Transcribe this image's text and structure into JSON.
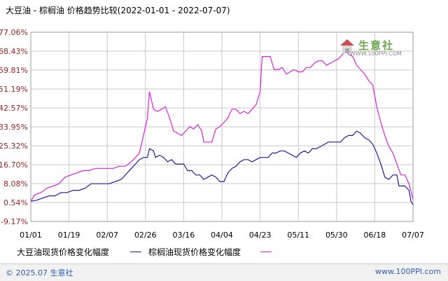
{
  "header": {
    "title": "大豆油 - 棕榈油 价格趋势比较(2022-01-01 - 2022-07-07)"
  },
  "logo": {
    "name": "生意社",
    "url": "WWW.100PPI.COM"
  },
  "footer": {
    "copyright": "© 2025.07 生意社",
    "site": "www.100PPI.com"
  },
  "colors": {
    "series_soy": "#1c1c9e",
    "series_palm": "#dd22dd",
    "grid": "#c9c9c9",
    "axis_text": "#000000"
  },
  "chart_data": {
    "type": "line",
    "title": "大豆油 - 棕榈油 价格趋势比较(2022-01-01 - 2022-07-07)",
    "xlabel": "",
    "ylabel": "",
    "x_tick_labels": [
      "01/01",
      "01/19",
      "02/07",
      "02/26",
      "03/16",
      "04/04",
      "04/23",
      "05/11",
      "05/30",
      "06/18",
      "07/07"
    ],
    "y_tick_labels": [
      "77.06%",
      "68.43%",
      "59.81%",
      "51.19%",
      "42.57%",
      "33.95%",
      "25.32%",
      "16.70%",
      "8.08%",
      "0.54%",
      "-9.17%"
    ],
    "ylim": [
      -9.17,
      77.06
    ],
    "grid": true,
    "legend_position": "bottom",
    "series": [
      {
        "name": "大豆油现货价格变化幅度",
        "points": [
          [
            0,
            0
          ],
          [
            3,
            0.5
          ],
          [
            6,
            1.5
          ],
          [
            9,
            2.5
          ],
          [
            12,
            2.5
          ],
          [
            15,
            4
          ],
          [
            18,
            4
          ],
          [
            21,
            5
          ],
          [
            24,
            5
          ],
          [
            27,
            6
          ],
          [
            30,
            8
          ],
          [
            33,
            8
          ],
          [
            36,
            8
          ],
          [
            39,
            8
          ],
          [
            42,
            9
          ],
          [
            45,
            10
          ],
          [
            48,
            13
          ],
          [
            50,
            15
          ],
          [
            52,
            17
          ],
          [
            54,
            19
          ],
          [
            56,
            20
          ],
          [
            58,
            20
          ],
          [
            59,
            24
          ],
          [
            61,
            23
          ],
          [
            62,
            20
          ],
          [
            64,
            21
          ],
          [
            66,
            20
          ],
          [
            68,
            18
          ],
          [
            70,
            19
          ],
          [
            72,
            17
          ],
          [
            74,
            17
          ],
          [
            76,
            17
          ],
          [
            78,
            14
          ],
          [
            80,
            14
          ],
          [
            82,
            12
          ],
          [
            84,
            12
          ],
          [
            86,
            10
          ],
          [
            88,
            11
          ],
          [
            90,
            12
          ],
          [
            92,
            11
          ],
          [
            94,
            9
          ],
          [
            96,
            9
          ],
          [
            98,
            13
          ],
          [
            100,
            15
          ],
          [
            102,
            16
          ],
          [
            104,
            18
          ],
          [
            106,
            19
          ],
          [
            108,
            19
          ],
          [
            110,
            18
          ],
          [
            112,
            19
          ],
          [
            114,
            20
          ],
          [
            116,
            20
          ],
          [
            118,
            20
          ],
          [
            120,
            22
          ],
          [
            122,
            22
          ],
          [
            124,
            23
          ],
          [
            126,
            23
          ],
          [
            128,
            22
          ],
          [
            130,
            21
          ],
          [
            132,
            20
          ],
          [
            134,
            22
          ],
          [
            136,
            23
          ],
          [
            138,
            22
          ],
          [
            140,
            24
          ],
          [
            142,
            24
          ],
          [
            144,
            25
          ],
          [
            146,
            26
          ],
          [
            148,
            27
          ],
          [
            150,
            27
          ],
          [
            152,
            27
          ],
          [
            154,
            27
          ],
          [
            156,
            29
          ],
          [
            158,
            30
          ],
          [
            160,
            30
          ],
          [
            162,
            32
          ],
          [
            164,
            31
          ],
          [
            166,
            29
          ],
          [
            168,
            28
          ],
          [
            170,
            26
          ],
          [
            172,
            22
          ],
          [
            174,
            17
          ],
          [
            176,
            11
          ],
          [
            178,
            10
          ],
          [
            180,
            12
          ],
          [
            182,
            12
          ],
          [
            183,
            7
          ],
          [
            186,
            7
          ],
          [
            188,
            5
          ],
          [
            189,
            0
          ],
          [
            190,
            -1.5
          ]
        ]
      },
      {
        "name": "棕榈油现货价格变化幅度",
        "points": [
          [
            0,
            0
          ],
          [
            2,
            3
          ],
          [
            5,
            4
          ],
          [
            8,
            6
          ],
          [
            11,
            7
          ],
          [
            14,
            8
          ],
          [
            17,
            11
          ],
          [
            20,
            12
          ],
          [
            23,
            13
          ],
          [
            26,
            14
          ],
          [
            29,
            14
          ],
          [
            32,
            15
          ],
          [
            35,
            15
          ],
          [
            38,
            15
          ],
          [
            41,
            15
          ],
          [
            44,
            16
          ],
          [
            47,
            16
          ],
          [
            50,
            18
          ],
          [
            52,
            20
          ],
          [
            54,
            22
          ],
          [
            56,
            30
          ],
          [
            58,
            38
          ],
          [
            59,
            50
          ],
          [
            61,
            42
          ],
          [
            63,
            41
          ],
          [
            65,
            42
          ],
          [
            67,
            43
          ],
          [
            69,
            38
          ],
          [
            71,
            32
          ],
          [
            73,
            31
          ],
          [
            75,
            30
          ],
          [
            77,
            32
          ],
          [
            79,
            34
          ],
          [
            81,
            33
          ],
          [
            83,
            35
          ],
          [
            85,
            32
          ],
          [
            86,
            27
          ],
          [
            88,
            27
          ],
          [
            90,
            27
          ],
          [
            92,
            33
          ],
          [
            94,
            34
          ],
          [
            96,
            36
          ],
          [
            98,
            38
          ],
          [
            100,
            42
          ],
          [
            102,
            42
          ],
          [
            104,
            40
          ],
          [
            106,
            41
          ],
          [
            108,
            40
          ],
          [
            110,
            42
          ],
          [
            112,
            44
          ],
          [
            114,
            50
          ],
          [
            115,
            66
          ],
          [
            117,
            66
          ],
          [
            119,
            66
          ],
          [
            121,
            60
          ],
          [
            123,
            60
          ],
          [
            125,
            61
          ],
          [
            127,
            58
          ],
          [
            129,
            59
          ],
          [
            131,
            60
          ],
          [
            133,
            59
          ],
          [
            135,
            59
          ],
          [
            137,
            61
          ],
          [
            139,
            61
          ],
          [
            141,
            63
          ],
          [
            143,
            64
          ],
          [
            145,
            64
          ],
          [
            147,
            62
          ],
          [
            149,
            63
          ],
          [
            151,
            64
          ],
          [
            153,
            65
          ],
          [
            155,
            67
          ],
          [
            157,
            69
          ],
          [
            158,
            67
          ],
          [
            160,
            66
          ],
          [
            162,
            62
          ],
          [
            164,
            60
          ],
          [
            166,
            58
          ],
          [
            168,
            55
          ],
          [
            170,
            53
          ],
          [
            172,
            43
          ],
          [
            174,
            36
          ],
          [
            176,
            30
          ],
          [
            178,
            25
          ],
          [
            180,
            22
          ],
          [
            182,
            17
          ],
          [
            184,
            12
          ],
          [
            186,
            12
          ],
          [
            188,
            8
          ],
          [
            190,
            1
          ]
        ]
      }
    ],
    "x_range": [
      0,
      190
    ]
  },
  "legend": {
    "soy": "大豆油现货价格变化幅度",
    "palm": "棕榈油现货价格变化幅度"
  }
}
